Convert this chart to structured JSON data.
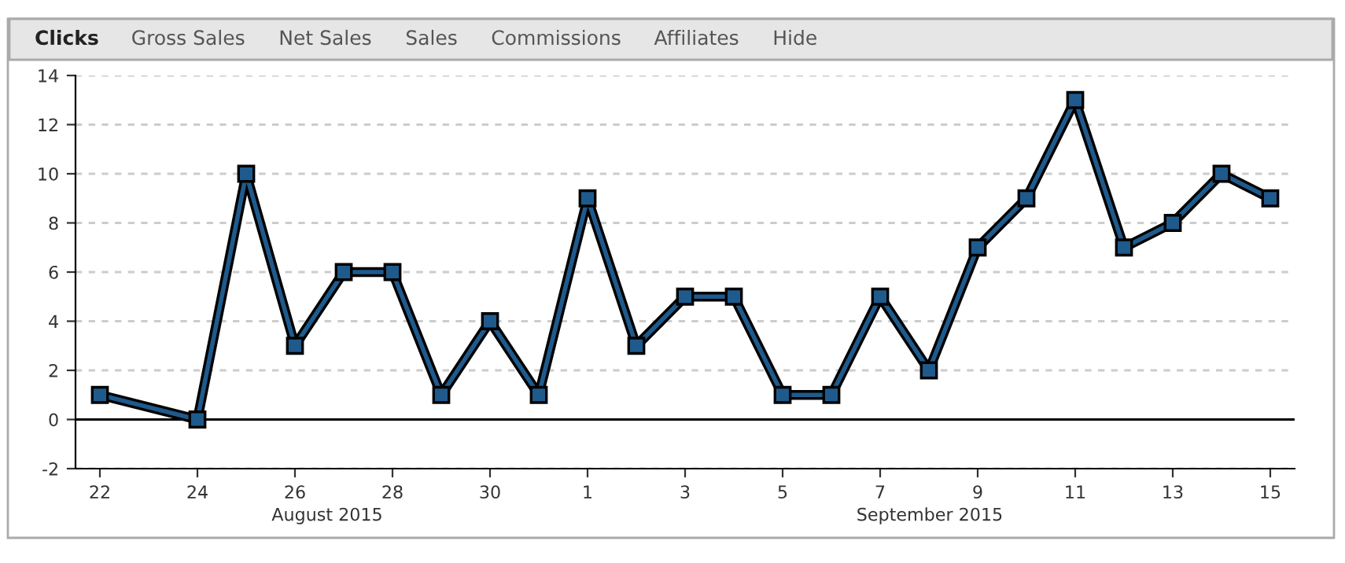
{
  "chart_data": {
    "type": "line",
    "x": [
      "2015-08-22",
      "2015-08-24",
      "2015-08-25",
      "2015-08-26",
      "2015-08-27",
      "2015-08-28",
      "2015-08-29",
      "2015-08-30",
      "2015-08-31",
      "2015-09-01",
      "2015-09-02",
      "2015-09-03",
      "2015-09-04",
      "2015-09-05",
      "2015-09-06",
      "2015-09-07",
      "2015-09-08",
      "2015-09-09",
      "2015-09-10",
      "2015-09-11",
      "2015-09-12",
      "2015-09-13",
      "2015-09-14",
      "2015-09-15"
    ],
    "series": [
      {
        "color": "#1f5a8c",
        "values": [
          1,
          0,
          10,
          3,
          6,
          6,
          1,
          4,
          1,
          9,
          3,
          5,
          5,
          1,
          1,
          5,
          2,
          7,
          9,
          13,
          7,
          8,
          10,
          9
        ]
      }
    ],
    "xlim": [
      "2015-08-21T12:00",
      "2015-09-15T12:00"
    ],
    "xticks": [
      {
        "value": "2015-08-22",
        "label": "22"
      },
      {
        "value": "2015-08-24",
        "label": "24"
      },
      {
        "value": "2015-08-26",
        "label": "26"
      },
      {
        "value": "2015-08-28",
        "label": "28"
      },
      {
        "value": "2015-08-30",
        "label": "30"
      },
      {
        "value": "2015-09-01",
        "label": "1"
      },
      {
        "value": "2015-09-03",
        "label": "3"
      },
      {
        "value": "2015-09-05",
        "label": "5"
      },
      {
        "value": "2015-09-07",
        "label": "7"
      },
      {
        "value": "2015-09-09",
        "label": "9"
      },
      {
        "value": "2015-09-11",
        "label": "11"
      },
      {
        "value": "2015-09-13",
        "label": "13"
      },
      {
        "value": "2015-09-15",
        "label": "15"
      }
    ],
    "ylim": [
      -2,
      14
    ],
    "yticks": [
      -2,
      0,
      2,
      4,
      6,
      8,
      10,
      12,
      14
    ],
    "grid": "y",
    "marker": "square",
    "line_style": "solid",
    "ref_lines": [
      {
        "axis": "y",
        "value": 0,
        "color": "#000000"
      }
    ],
    "annotations": [
      "Clicks",
      "Gross Sales",
      "Net Sales",
      "Sales",
      "Commissions",
      "Affiliates",
      "Hide",
      "August 2015",
      "September 2015"
    ]
  }
}
